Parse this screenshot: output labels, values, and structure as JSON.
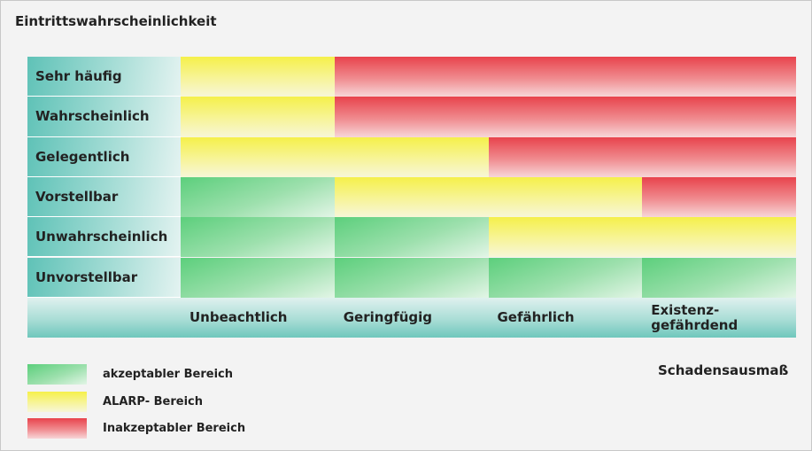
{
  "title": "Eintrittswahrscheinlichkeit",
  "rows": [
    "Sehr häufig",
    "Wahrscheinlich",
    "Gelegentlich",
    "Vorstellbar",
    "Unwahrscheinlich",
    "Unvorstellbar"
  ],
  "columns": [
    "Unbeachtlich",
    "Geringfügig",
    "Gefährlich",
    "Existenz- gefährdend"
  ],
  "x_axis_label": "Schadensausmaß",
  "legend": [
    {
      "label": "akzeptabler Bereich",
      "color": "#5ccf7c"
    },
    {
      "label": "ALARP- Bereich",
      "color": "#f5f04a"
    },
    {
      "label": "Inakzeptabler Bereich",
      "color": "#e8434c"
    }
  ]
}
